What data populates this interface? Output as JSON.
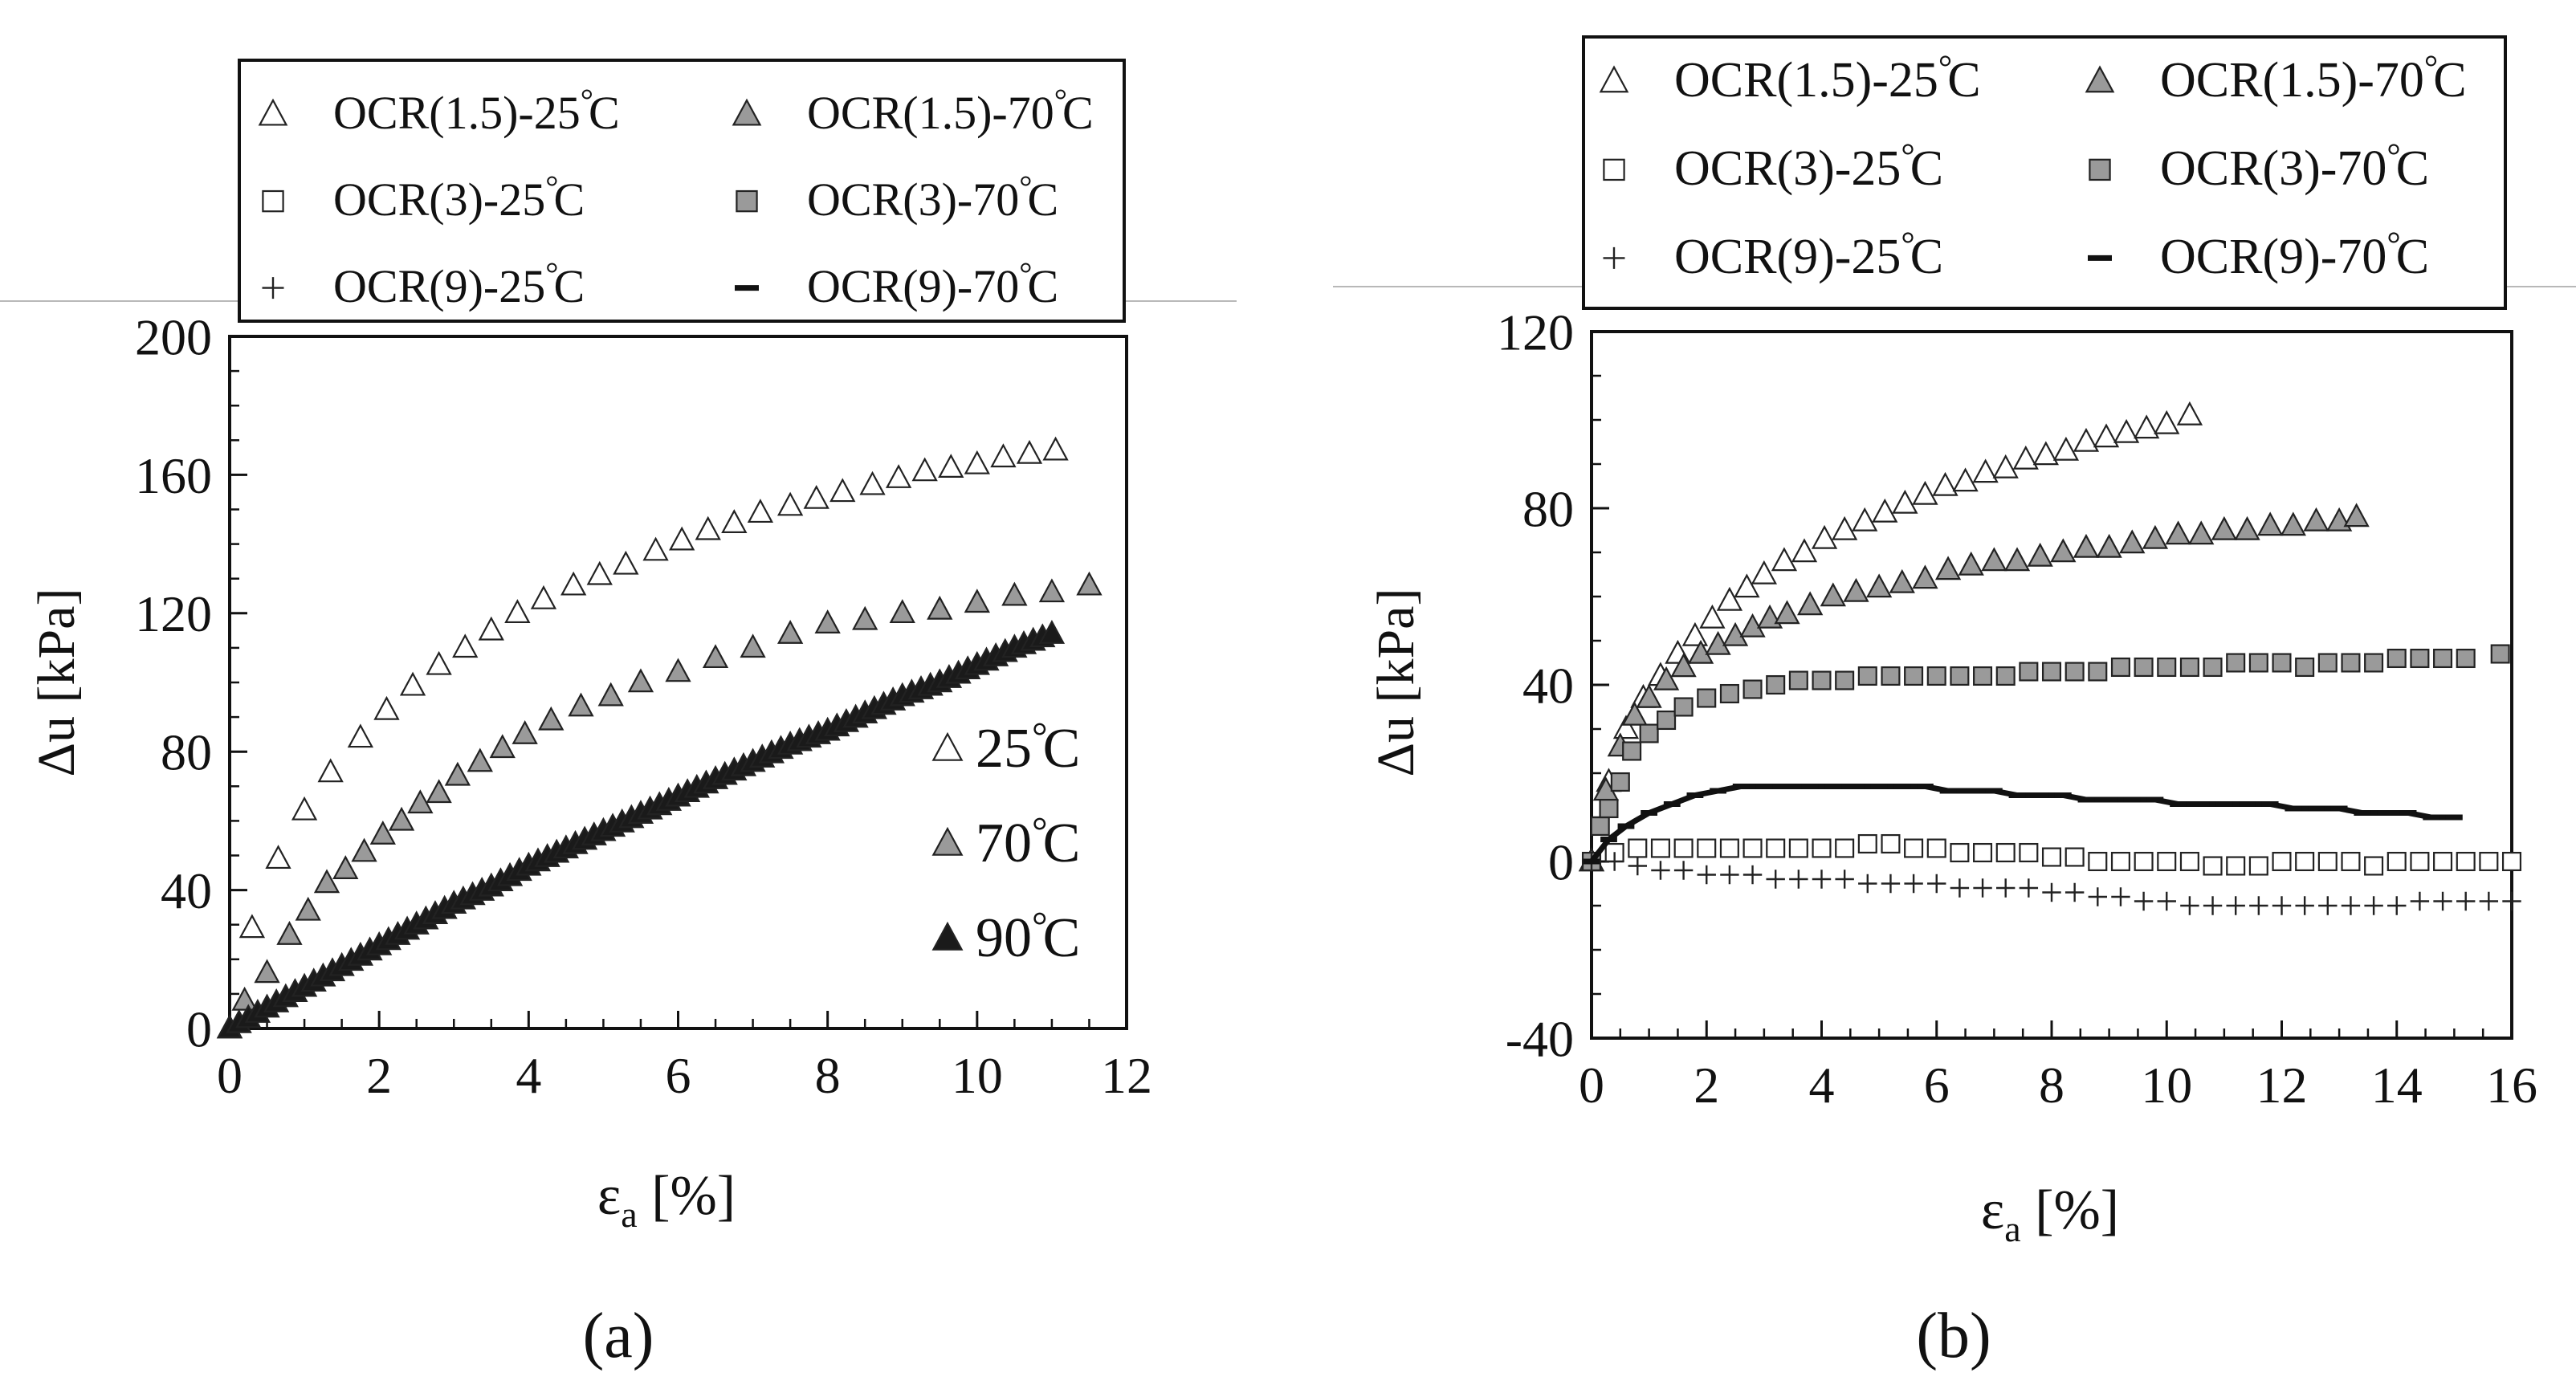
{
  "legend": {
    "entries": [
      {
        "label": "OCR(1.5)-25°C",
        "marker": "triangle-open"
      },
      {
        "label": "OCR(1.5)-70°C",
        "marker": "triangle-gray"
      },
      {
        "label": "OCR(3)-25°C",
        "marker": "square-open"
      },
      {
        "label": "OCR(3)-70°C",
        "marker": "square-gray"
      },
      {
        "label": "OCR(9)-25°C",
        "marker": "plus"
      },
      {
        "label": "OCR(9)-70°C",
        "marker": "dash"
      }
    ]
  },
  "colors": {
    "open": "#ffffff",
    "gray": "#9a9a9a",
    "black": "#1a1a1a",
    "stroke": "#222222"
  },
  "chart_data": [
    {
      "id": "a",
      "type": "scatter",
      "panel_label": "(a)",
      "xlabel": "εa [%]",
      "ylabel": "Δu [kPa]",
      "xlim": [
        0,
        12
      ],
      "ylim": [
        0,
        200
      ],
      "xticks": [
        0,
        2,
        4,
        6,
        8,
        10,
        12
      ],
      "yticks": [
        0,
        40,
        80,
        120,
        160,
        200
      ],
      "inner_legend": [
        {
          "label": "25°C",
          "marker": "triangle-open"
        },
        {
          "label": "70°C",
          "marker": "triangle-gray"
        },
        {
          "label": "90°C",
          "marker": "triangle-black"
        }
      ],
      "series": [
        {
          "name": "25°C",
          "marker": "triangle-open",
          "x": [
            0,
            0.3,
            0.65,
            1,
            1.35,
            1.75,
            2.1,
            2.45,
            2.8,
            3.15,
            3.5,
            3.85,
            4.2,
            4.6,
            4.95,
            5.3,
            5.7,
            6.05,
            6.4,
            6.75,
            7.1,
            7.5,
            7.85,
            8.2,
            8.6,
            8.95,
            9.3,
            9.65,
            10,
            10.35,
            10.7,
            11.05
          ],
          "y": [
            0,
            29,
            49,
            63,
            74,
            84,
            92,
            99,
            105,
            110,
            115,
            120,
            124,
            128,
            131,
            134,
            138,
            141,
            144,
            146,
            149,
            151,
            153,
            155,
            157,
            159,
            161,
            162,
            163,
            165,
            166,
            167
          ]
        },
        {
          "name": "70°C",
          "marker": "triangle-gray",
          "x": [
            0,
            0.2,
            0.5,
            0.8,
            1.05,
            1.3,
            1.55,
            1.8,
            2.05,
            2.3,
            2.55,
            2.8,
            3.05,
            3.35,
            3.65,
            3.95,
            4.3,
            4.7,
            5.1,
            5.5,
            6,
            6.5,
            7,
            7.5,
            8,
            8.5,
            9,
            9.5,
            10,
            10.5,
            11,
            11.5
          ],
          "y": [
            0,
            8,
            16,
            27,
            34,
            42,
            46,
            51,
            56,
            60,
            65,
            68,
            73,
            77,
            81,
            85,
            89,
            93,
            96,
            100,
            103,
            107,
            110,
            114,
            117,
            118,
            120,
            121,
            123,
            125,
            126,
            128
          ]
        },
        {
          "name": "90°C",
          "marker": "triangle-black",
          "x": [
            0,
            0.5,
            1,
            1.5,
            2,
            2.5,
            3,
            3.5,
            4,
            4.5,
            5,
            5.5,
            6,
            6.5,
            7,
            7.5,
            8,
            8.5,
            9,
            9.5,
            10,
            10.5,
            11
          ],
          "y": [
            0,
            6,
            12,
            18,
            24,
            30,
            36,
            41,
            47,
            52,
            57,
            62,
            67,
            72,
            77,
            82,
            86,
            91,
            96,
            100,
            105,
            110,
            114
          ]
        }
      ]
    },
    {
      "id": "b",
      "type": "scatter",
      "panel_label": "(b)",
      "xlabel": "εa [%]",
      "ylabel": "Δu [kPa]",
      "xlim": [
        0,
        16
      ],
      "ylim": [
        -40,
        120
      ],
      "xticks": [
        0,
        2,
        4,
        6,
        8,
        10,
        12,
        14,
        16
      ],
      "yticks": [
        -40,
        0,
        40,
        80,
        120
      ],
      "series": [
        {
          "name": "OCR(1.5)-25°C",
          "marker": "triangle-open",
          "x": [
            0,
            0.3,
            0.6,
            0.9,
            1.2,
            1.5,
            1.8,
            2.1,
            2.4,
            2.7,
            3,
            3.35,
            3.7,
            4.05,
            4.4,
            4.75,
            5.1,
            5.45,
            5.8,
            6.15,
            6.5,
            6.85,
            7.2,
            7.55,
            7.9,
            8.25,
            8.6,
            8.95,
            9.3,
            9.65,
            10,
            10.4
          ],
          "y": [
            0,
            18,
            30,
            37,
            42,
            47,
            51,
            55,
            59,
            62,
            65,
            68,
            70,
            73,
            75,
            77,
            79,
            81,
            83,
            85,
            86,
            88,
            89,
            91,
            92,
            93,
            95,
            96,
            97,
            98,
            99,
            101
          ]
        },
        {
          "name": "OCR(1.5)-70°C",
          "marker": "triangle-gray",
          "x": [
            0,
            0.25,
            0.5,
            0.75,
            1,
            1.3,
            1.6,
            1.9,
            2.2,
            2.5,
            2.8,
            3.1,
            3.4,
            3.8,
            4.2,
            4.6,
            5,
            5.4,
            5.8,
            6.2,
            6.6,
            7,
            7.4,
            7.8,
            8.2,
            8.6,
            9,
            9.4,
            9.8,
            10.2,
            10.6,
            11,
            11.4,
            11.8,
            12.2,
            12.6,
            13,
            13.3
          ],
          "y": [
            0,
            16,
            26,
            33,
            37,
            41,
            44,
            47,
            49,
            51,
            53,
            55,
            56,
            58,
            60,
            61,
            62,
            63,
            64,
            66,
            67,
            68,
            68,
            69,
            70,
            71,
            71,
            72,
            73,
            74,
            74,
            75,
            75,
            76,
            76,
            77,
            77,
            78
          ]
        },
        {
          "name": "OCR(3)-25°C",
          "marker": "square-open",
          "x": [
            0,
            0.4,
            0.8,
            1.2,
            1.6,
            2,
            2.4,
            2.8,
            3.2,
            3.6,
            4,
            4.4,
            4.8,
            5.2,
            5.6,
            6,
            6.4,
            6.8,
            7.2,
            7.6,
            8,
            8.4,
            8.8,
            9.2,
            9.6,
            10,
            10.4,
            10.8,
            11.2,
            11.6,
            12,
            12.4,
            12.8,
            13.2,
            13.6,
            14,
            14.4,
            14.8,
            15.2,
            15.6,
            16
          ],
          "y": [
            0,
            2,
            3,
            3,
            3,
            3,
            3,
            3,
            3,
            3,
            3,
            3,
            4,
            4,
            3,
            3,
            2,
            2,
            2,
            2,
            1,
            1,
            0,
            0,
            0,
            0,
            0,
            -1,
            -1,
            -1,
            0,
            0,
            0,
            0,
            -1,
            0,
            0,
            0,
            0,
            0,
            0
          ]
        },
        {
          "name": "OCR(3)-70°C",
          "marker": "square-gray",
          "x": [
            0,
            0.15,
            0.3,
            0.5,
            0.7,
            1,
            1.3,
            1.6,
            2,
            2.4,
            2.8,
            3.2,
            3.6,
            4,
            4.4,
            4.8,
            5.2,
            5.6,
            6,
            6.4,
            6.8,
            7.2,
            7.6,
            8,
            8.4,
            8.8,
            9.2,
            9.6,
            10,
            10.4,
            10.8,
            11.2,
            11.6,
            12,
            12.4,
            12.8,
            13.2,
            13.6,
            14,
            14.4,
            14.8,
            15.2,
            15.8
          ],
          "y": [
            0,
            8,
            12,
            18,
            25,
            29,
            32,
            35,
            37,
            38,
            39,
            40,
            41,
            41,
            41,
            42,
            42,
            42,
            42,
            42,
            42,
            42,
            43,
            43,
            43,
            43,
            44,
            44,
            44,
            44,
            44,
            45,
            45,
            45,
            44,
            45,
            45,
            45,
            46,
            46,
            46,
            46,
            47
          ]
        },
        {
          "name": "OCR(9)-25°C",
          "marker": "plus",
          "x": [
            0,
            0.4,
            0.8,
            1.2,
            1.6,
            2,
            2.4,
            2.8,
            3.2,
            3.6,
            4,
            4.4,
            4.8,
            5.2,
            5.6,
            6,
            6.4,
            6.8,
            7.2,
            7.6,
            8,
            8.4,
            8.8,
            9.2,
            9.6,
            10,
            10.4,
            10.8,
            11.2,
            11.6,
            12,
            12.4,
            12.8,
            13.2,
            13.6,
            14,
            14.4,
            14.8,
            15.2,
            15.6,
            16
          ],
          "y": [
            0,
            0,
            -1,
            -2,
            -2,
            -3,
            -3,
            -3,
            -4,
            -4,
            -4,
            -4,
            -5,
            -5,
            -5,
            -5,
            -6,
            -6,
            -6,
            -6,
            -7,
            -7,
            -8,
            -8,
            -9,
            -9,
            -10,
            -10,
            -10,
            -10,
            -10,
            -10,
            -10,
            -10,
            -10,
            -10,
            -9,
            -9,
            -9,
            -9,
            -9
          ]
        },
        {
          "name": "OCR(9)-70°C",
          "marker": "dash",
          "x": [
            0,
            0.3,
            0.6,
            1,
            1.4,
            1.8,
            2.2,
            2.6,
            3,
            3.4,
            3.8,
            4.2,
            4.6,
            5,
            5.4,
            5.8,
            6.2,
            6.6,
            7,
            7.4,
            7.8,
            8.2,
            8.6,
            9,
            9.4,
            9.8,
            10.2,
            10.6,
            11,
            11.4,
            11.8,
            12.2,
            12.6,
            13,
            13.4,
            13.8,
            14.2,
            14.6,
            15
          ],
          "y": [
            0,
            5,
            8,
            11,
            13,
            15,
            16,
            17,
            17,
            17,
            17,
            17,
            17,
            17,
            17,
            17,
            16,
            16,
            16,
            15,
            15,
            15,
            14,
            14,
            14,
            14,
            13,
            13,
            13,
            13,
            13,
            12,
            12,
            12,
            11,
            11,
            11,
            10,
            10
          ]
        }
      ]
    }
  ]
}
